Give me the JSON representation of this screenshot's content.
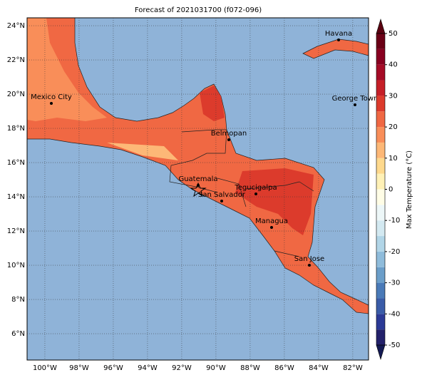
{
  "title": "Forecast of 2021031700 (f072-096)",
  "lon_ticks": [
    {
      "value": -100,
      "label": "100°W"
    },
    {
      "value": -98,
      "label": "98°W"
    },
    {
      "value": -96,
      "label": "96°W"
    },
    {
      "value": -94,
      "label": "94°W"
    },
    {
      "value": -92,
      "label": "92°W"
    },
    {
      "value": -90,
      "label": "90°W"
    },
    {
      "value": -88,
      "label": "88°W"
    },
    {
      "value": -86,
      "label": "86°W"
    },
    {
      "value": -84,
      "label": "84°W"
    },
    {
      "value": -82,
      "label": "82°W"
    }
  ],
  "lat_ticks": [
    {
      "value": 6,
      "label": "6°N"
    },
    {
      "value": 8,
      "label": "8°N"
    },
    {
      "value": 10,
      "label": "10°N"
    },
    {
      "value": 12,
      "label": "12°N"
    },
    {
      "value": 14,
      "label": "14°N"
    },
    {
      "value": 16,
      "label": "16°N"
    },
    {
      "value": 18,
      "label": "18°N"
    },
    {
      "value": 20,
      "label": "20°N"
    },
    {
      "value": 22,
      "label": "22°N"
    },
    {
      "value": 24,
      "label": "24°N"
    }
  ],
  "cities": [
    "Havana",
    "Mexico City",
    "George Town",
    "Belmopan",
    "Guatemala",
    "Tegucigalpa",
    "San Salvador",
    "Managua",
    "San Jose"
  ],
  "colorbar": {
    "label": "Max Temperature (°C)",
    "ticks": [
      -50,
      -40,
      -30,
      -20,
      -10,
      0,
      10,
      20,
      30,
      40,
      50
    ],
    "colors": [
      "#23216b",
      "#2b3a96",
      "#3a5ca8",
      "#4a7ab8",
      "#6b9ec9",
      "#8fbcdb",
      "#b1d5e7",
      "#d3e9f1",
      "#edf7f8",
      "#fffde6",
      "#fff1b6",
      "#fed98d",
      "#fdb877",
      "#f98e59",
      "#f06843",
      "#dc3b2c",
      "#c51f27",
      "#a50b26",
      "#880020",
      "#6b0016"
    ],
    "under": "#141a54",
    "over": "#5a0010"
  }
}
